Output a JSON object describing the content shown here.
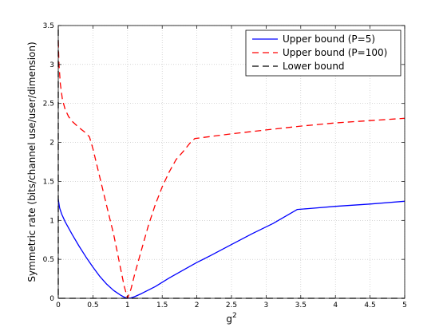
{
  "chart_data": {
    "type": "line",
    "title": "",
    "xlabel": "g",
    "xlabel_superscript": "2",
    "ylabel": "Symmetric rate (bits/channel use/user/dimension)",
    "xlim": [
      0,
      5
    ],
    "ylim": [
      0,
      3.5
    ],
    "xticks": [
      "0",
      "0.5",
      "1",
      "1.5",
      "2",
      "2.5",
      "3",
      "3.5",
      "4",
      "4.5",
      "5"
    ],
    "yticks": [
      "0",
      "0.5",
      "1",
      "1.5",
      "2",
      "2.5",
      "3",
      "3.5"
    ],
    "grid": true,
    "legend_position": "top-right",
    "series": [
      {
        "name": "Upper bound (P=5)",
        "color": "#0000ff",
        "dash": "solid",
        "x": [
          0,
          0.02,
          0.05,
          0.1,
          0.2,
          0.3,
          0.4,
          0.5,
          0.6,
          0.7,
          0.8,
          0.9,
          0.95,
          1.0,
          1.05,
          1.1,
          1.2,
          1.4,
          1.6,
          1.8,
          2.0,
          2.2,
          2.5,
          2.8,
          3.1,
          3.45,
          3.6,
          4.0,
          4.5,
          5.0
        ],
        "y": [
          1.27,
          1.16,
          1.08,
          0.98,
          0.82,
          0.67,
          0.53,
          0.4,
          0.28,
          0.18,
          0.1,
          0.04,
          0.015,
          0.0,
          0.005,
          0.02,
          0.06,
          0.15,
          0.26,
          0.36,
          0.46,
          0.55,
          0.69,
          0.83,
          0.96,
          1.14,
          1.15,
          1.18,
          1.21,
          1.245
        ]
      },
      {
        "name": "Upper bound (P=100)",
        "color": "#ff0000",
        "dash": "dashed",
        "x": [
          0,
          0.01,
          0.03,
          0.06,
          0.1,
          0.15,
          0.2,
          0.3,
          0.4,
          0.45,
          0.5,
          0.6,
          0.7,
          0.8,
          0.85,
          0.9,
          0.95,
          1.0,
          1.05,
          1.1,
          1.2,
          1.3,
          1.4,
          1.5,
          1.6,
          1.7,
          1.8,
          1.9,
          1.97,
          2.5,
          3.0,
          3.5,
          4.0,
          4.5,
          5.0
        ],
        "y": [
          3.3,
          3.0,
          2.75,
          2.55,
          2.42,
          2.33,
          2.27,
          2.19,
          2.12,
          2.07,
          1.92,
          1.55,
          1.18,
          0.82,
          0.6,
          0.38,
          0.16,
          0.0,
          0.12,
          0.3,
          0.62,
          0.93,
          1.2,
          1.43,
          1.62,
          1.78,
          1.88,
          1.99,
          2.05,
          2.11,
          2.16,
          2.21,
          2.25,
          2.28,
          2.31
        ]
      },
      {
        "name": "Lower bound",
        "color": "#000000",
        "dash": "dashed",
        "x": [
          0,
          0.0,
          0.02,
          5.0
        ],
        "y": [
          3.45,
          0.0,
          0.0,
          0.0
        ]
      }
    ]
  }
}
